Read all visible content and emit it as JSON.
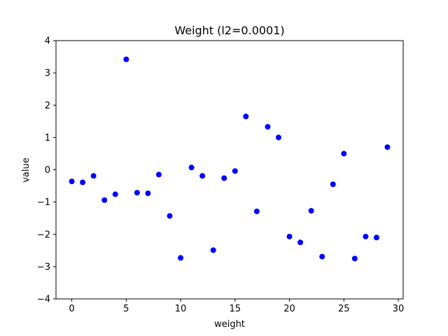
{
  "chart_data": {
    "type": "scatter",
    "title": "Weight (l2=0.0001)",
    "xlabel": "weight",
    "ylabel": "value",
    "xlim": [
      -1.45,
      30.45
    ],
    "ylim": [
      -4,
      4
    ],
    "x_ticks": [
      0,
      5,
      10,
      15,
      20,
      25,
      30
    ],
    "y_ticks": [
      -4,
      -3,
      -2,
      -1,
      0,
      1,
      2,
      3,
      4
    ],
    "grid": false,
    "marker_color": "#0000ff",
    "x": [
      0,
      1,
      2,
      3,
      4,
      5,
      6,
      7,
      8,
      9,
      10,
      11,
      12,
      13,
      14,
      15,
      16,
      17,
      18,
      19,
      20,
      21,
      22,
      23,
      24,
      25,
      26,
      27,
      28,
      29
    ],
    "y": [
      -0.36,
      -0.39,
      -0.19,
      -0.94,
      -0.76,
      3.42,
      -0.71,
      -0.73,
      -0.15,
      -1.43,
      -2.73,
      0.07,
      -0.19,
      -2.49,
      -0.26,
      -0.04,
      1.65,
      -1.29,
      1.33,
      1.0,
      -2.07,
      -2.25,
      -1.27,
      -2.69,
      -0.45,
      0.5,
      -2.75,
      -2.07,
      -2.1,
      0.7
    ]
  }
}
